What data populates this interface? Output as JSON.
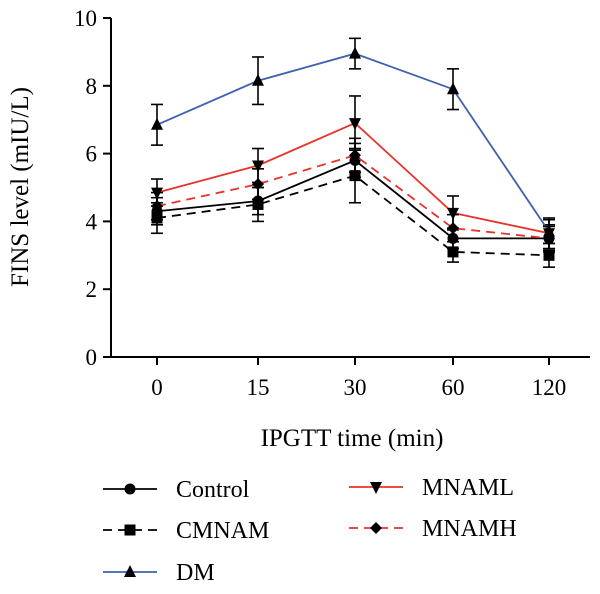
{
  "chart_data": {
    "type": "line",
    "title": "",
    "xlabel": "IPGTT time (min)",
    "ylabel": "FINS level (mIU/L)",
    "categories": [
      "0",
      "15",
      "30",
      "60",
      "120"
    ],
    "ylim": [
      0,
      10
    ],
    "yticks": [
      "0",
      "2",
      "4",
      "6",
      "8",
      "10"
    ],
    "grid": false,
    "legend_position": "bottom",
    "series": [
      {
        "name": "Control",
        "values": [
          4.3,
          4.6,
          5.8,
          3.5,
          3.5
        ],
        "errors": [
          0.4,
          0.4,
          0.5,
          0.3,
          0.4
        ],
        "color": "#000000",
        "dashed": false,
        "marker": "circle"
      },
      {
        "name": "CMNAM",
        "values": [
          4.1,
          4.5,
          5.35,
          3.1,
          3.0
        ],
        "errors": [
          0.45,
          0.5,
          0.8,
          0.3,
          0.35
        ],
        "color": "#000000",
        "dashed": true,
        "marker": "square"
      },
      {
        "name": "DM",
        "values": [
          6.85,
          8.15,
          8.95,
          7.9,
          3.7
        ],
        "errors": [
          0.6,
          0.7,
          0.45,
          0.6,
          0.35
        ],
        "color": "#3f5fb0",
        "dashed": false,
        "marker": "triangle-up"
      },
      {
        "name": "MNAML",
        "values": [
          4.85,
          5.65,
          6.9,
          4.25,
          3.65
        ],
        "errors": [
          0.4,
          0.5,
          0.8,
          0.5,
          0.45
        ],
        "color": "#e8322b",
        "dashed": false,
        "marker": "triangle-down"
      },
      {
        "name": "MNAMH",
        "values": [
          4.45,
          5.1,
          5.95,
          3.8,
          3.5
        ],
        "errors": [
          0.4,
          0.45,
          0.5,
          0.4,
          0.35
        ],
        "color": "#e8322b",
        "dashed": true,
        "marker": "diamond"
      }
    ],
    "legend_order": [
      0,
      1,
      2,
      3,
      4
    ]
  }
}
